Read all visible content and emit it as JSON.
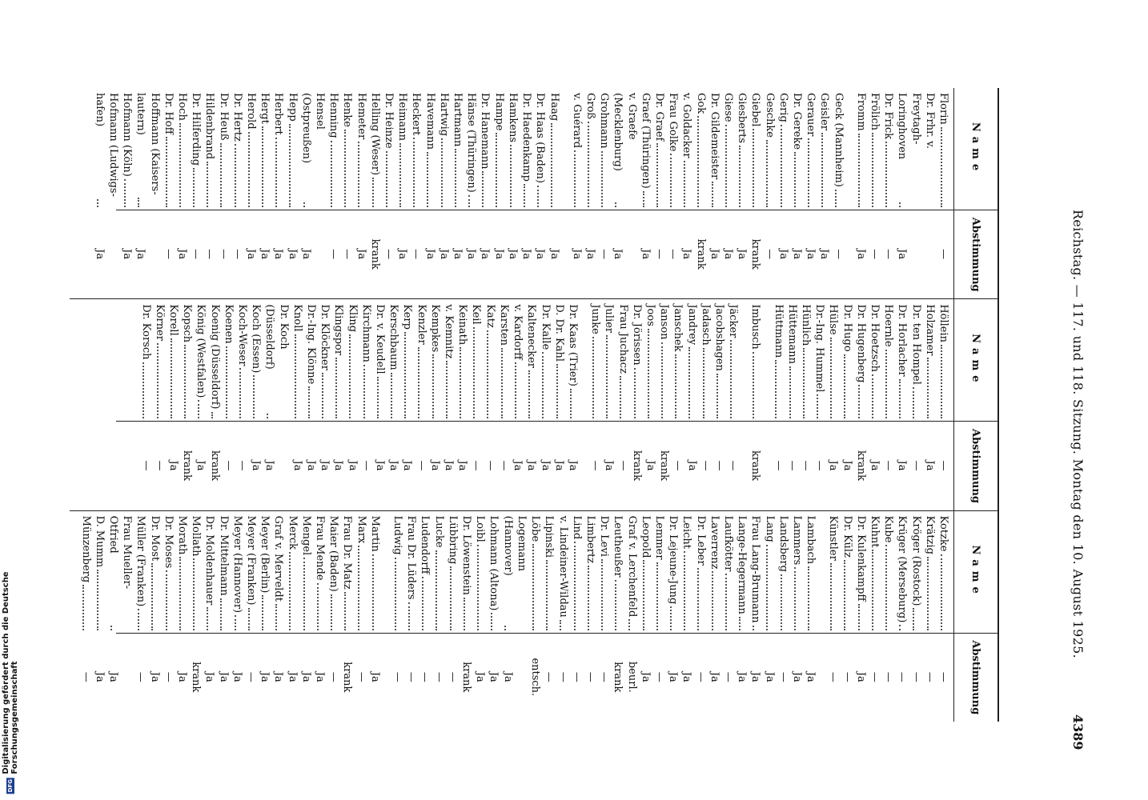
{
  "header": {
    "title": "Reichstag. — 117. und 118. Sitzung. Montag den 10. August 1925.",
    "page": "4389"
  },
  "table": {
    "columns": [
      {
        "name_header": "Name",
        "vote_header": "Abstimmung",
        "groups": [
          [
            [
              "Florin",
              "—"
            ],
            [
              "Dr. Frhr. v. Freytagh-\nLoringhoven",
              "Ja"
            ],
            [
              "Dr. Frick",
              "—"
            ],
            [
              "Frölich",
              "—"
            ],
            [
              "Fromm",
              "Ja"
            ]
          ],
          [
            [
              "Geck (Mannheim)",
              "—"
            ],
            [
              "Geisler",
              "Ja"
            ],
            [
              "Gerauer",
              "Ja"
            ],
            [
              "Dr. Gereke",
              "Ja"
            ],
            [
              "Gerig",
              "Ja"
            ],
            [
              "Geschke",
              "—"
            ],
            [
              "Giebel",
              "krank"
            ],
            [
              "Giesberts",
              "Ja"
            ],
            [
              "Giese",
              "Ja"
            ],
            [
              "Dr. Gildemeister",
              "Ja"
            ],
            [
              "Gok",
              "krank"
            ],
            [
              "v. Goldacker",
              "Ja"
            ],
            [
              "Frau Golke",
              "—"
            ],
            [
              "Dr. Graef",
              "—"
            ],
            [
              "Graef (Thüringen)",
              "Ja"
            ],
            [
              "v. Graefe (Mecklenburg)",
              "Ja"
            ],
            [
              "Grohmann",
              "—"
            ],
            [
              "Groß",
              "Ja"
            ],
            [
              "v. Guérard",
              "Ja"
            ]
          ],
          [
            [
              "Haag",
              "Ja"
            ],
            [
              "Dr. Haas (Baden)",
              "Ja"
            ],
            [
              "Dr. Haedenkamp",
              "Ja"
            ],
            [
              "Hamkens",
              "Ja"
            ],
            [
              "Hampe",
              "Ja"
            ],
            [
              "Dr. Hanemann",
              "Ja"
            ],
            [
              "Hänse (Thüringen)",
              "Ja"
            ],
            [
              "Hartmann",
              "Ja"
            ],
            [
              "Hartwig",
              "Ja"
            ],
            [
              "Havemann",
              "Ja"
            ],
            [
              "Heckert",
              "—"
            ],
            [
              "Heimann",
              "Ja"
            ],
            [
              "Dr. Heinze",
              "—"
            ],
            [
              "Helling (Weser)",
              "krank"
            ],
            [
              "Hemeter",
              "Ja"
            ],
            [
              "Henke",
              "—"
            ],
            [
              "Henning",
              "—"
            ],
            [
              "Hensel (Ostpreußen)",
              "Ja"
            ],
            [
              "Hepp",
              "Ja"
            ],
            [
              "Herbert",
              "Ja"
            ],
            [
              "Hergt",
              "Ja"
            ],
            [
              "Herold",
              "Ja"
            ],
            [
              "Dr. Hertz",
              "—"
            ],
            [
              "Dr. Heuß",
              "—"
            ],
            [
              "Hildenbrand",
              "—"
            ],
            [
              "Dr. Hilferding",
              "—"
            ],
            [
              "Hoch",
              "Ja"
            ],
            [
              "Dr. Hoff",
              "—"
            ],
            [
              "Hoffmann (Kaisers-\nlautern)",
              "Ja"
            ],
            [
              "Hofmann (Köln)",
              "Ja"
            ],
            [
              "Hofmann (Ludwigs-\nhafen)",
              "Ja"
            ]
          ]
        ]
      },
      {
        "name_header": "Name",
        "vote_header": "Abstimmung",
        "groups": [
          [
            [
              "Höllein",
              "—"
            ],
            [
              "Holzamer",
              "Ja"
            ],
            [
              "Dr. ten Hompel",
              "—"
            ],
            [
              "Dr. Horlacher",
              "Ja"
            ],
            [
              "Hoernle",
              "—"
            ],
            [
              "Dr. Hoetzsch",
              "Ja"
            ],
            [
              "Dr. Hugenberg",
              "krank"
            ],
            [
              "Dr. Hugo",
              "Ja"
            ],
            [
              "Hülse",
              "Ja"
            ],
            [
              "Dr.-Ing. Hummel",
              "—"
            ],
            [
              "Hünlich",
              "—"
            ],
            [
              "Hüttemann",
              "—"
            ],
            [
              "Hüttmann",
              "—"
            ]
          ],
          [
            [
              "Imbusch",
              "krank"
            ]
          ],
          [
            [
              "Jäcker",
              "—"
            ],
            [
              "Jacobshagen",
              "—"
            ],
            [
              "Jadasch",
              "—"
            ],
            [
              "Jandrey",
              "Ja"
            ],
            [
              "Janschek",
              "—"
            ],
            [
              "Janson",
              "krank"
            ],
            [
              "Joos",
              "Ja"
            ],
            [
              "Dr. Jörissen",
              "krank"
            ],
            [
              "Frau Juchacz",
              "—"
            ],
            [
              "Julier",
              "Ja"
            ],
            [
              "Junke",
              "—"
            ]
          ],
          [
            [
              "Dr. Kaas (Trier)",
              "Ja"
            ],
            [
              "D. Dr. Kahl",
              "Ja"
            ],
            [
              "Dr. Kalle",
              "Ja"
            ],
            [
              "Kaltenecker",
              "Ja"
            ],
            [
              "v. Kardorff",
              "Ja"
            ],
            [
              "Karsten",
              "—"
            ],
            [
              "Katz",
              "—"
            ],
            [
              "Keil",
              "—"
            ],
            [
              "Keinath",
              "Ja"
            ],
            [
              "v. Kemnitz",
              "Ja"
            ],
            [
              "Kempkes",
              "Ja"
            ],
            [
              "Kenzler",
              "—"
            ],
            [
              "Kerp",
              "Ja"
            ],
            [
              "Kerschbaum",
              "Ja"
            ],
            [
              "Dr. v. Keudell",
              "Ja"
            ],
            [
              "Kirchmann",
              "—"
            ],
            [
              "Kling",
              "Ja"
            ],
            [
              "Klingspor",
              "Ja"
            ],
            [
              "Dr. Klöckner",
              "Ja"
            ],
            [
              "Dr.-Ing. Klönne",
              "Ja"
            ],
            [
              "Knoll",
              "Ja"
            ],
            [
              "Dr. Koch (Düsseldorf)",
              "Ja"
            ],
            [
              "Koch (Essen)",
              "Ja"
            ],
            [
              "Koch-Weser",
              "—"
            ],
            [
              "Koenen",
              "—"
            ],
            [
              "Koenig (Düsseldorf)",
              "krank"
            ],
            [
              "König (Westfalen)",
              "Ja"
            ],
            [
              "Kopsch",
              "krank"
            ],
            [
              "Korell",
              "Ja"
            ],
            [
              "Körner",
              "—"
            ],
            [
              "Dr. Korsch",
              "—"
            ]
          ]
        ]
      },
      {
        "name_header": "Name",
        "vote_header": "Abstimmung",
        "groups": [
          [
            [
              "Kotzke",
              "—"
            ],
            [
              "Krätzig",
              "—"
            ],
            [
              "Kröger (Rostock)",
              "—"
            ],
            [
              "Krüger (Merseburg)",
              "—"
            ],
            [
              "Kube",
              "—"
            ],
            [
              "Kuhnt",
              "—"
            ],
            [
              "Dr. Kulenkampff",
              "Ja"
            ],
            [
              "Dr. Külz",
              "—"
            ],
            [
              "Künstler",
              "—"
            ]
          ],
          [
            [
              "Lambach",
              "Ja"
            ],
            [
              "Lammers",
              "Ja"
            ],
            [
              "Landsberg",
              "—"
            ],
            [
              "Lang",
              "Ja"
            ],
            [
              "Frau Lang-Brumann",
              "Ja"
            ],
            [
              "Lange-Hegermann",
              "Ja"
            ],
            [
              "Laufkötter",
              "—"
            ],
            [
              "Laverrenz",
              "Ja"
            ],
            [
              "Dr. Leber",
              "—"
            ],
            [
              "Leicht",
              "Ja"
            ],
            [
              "Dr. Lejeune-Jung",
              "Ja"
            ],
            [
              "Lemmer",
              "—"
            ],
            [
              "Leopold",
              "Ja"
            ],
            [
              "Graf v. Lerchenfeld",
              "beurl."
            ],
            [
              "Leutheußer",
              "krank"
            ],
            [
              "Dr. Levi",
              "—"
            ],
            [
              "Limbertz",
              "—"
            ],
            [
              "Lind",
              "—"
            ],
            [
              "v. Lindeiner-Wildau",
              "—"
            ],
            [
              "Lipinski",
              "—"
            ],
            [
              "Löbe",
              "entsch."
            ],
            [
              "Logemann (Hannover)",
              "Ja"
            ],
            [
              "Lohmann (Altona)",
              "Ja"
            ],
            [
              "Loibl",
              "Ja"
            ],
            [
              "Dr. Löwenstein",
              "krank"
            ],
            [
              "Lübbring",
              "—"
            ],
            [
              "Lucke",
              "—"
            ],
            [
              "Ludendorff",
              "—"
            ],
            [
              "Frau Dr. Lüders",
              "—"
            ],
            [
              "Ludwig",
              "—"
            ]
          ],
          [
            [
              "Martin",
              "Ja"
            ],
            [
              "Marx",
              "—"
            ],
            [
              "Frau Dr. Matz",
              "krank"
            ],
            [
              "Maier (Baden)",
              "—"
            ],
            [
              "Frau Mende",
              "Ja"
            ],
            [
              "Mengel",
              "Ja"
            ],
            [
              "Merck",
              "Ja"
            ],
            [
              "Graf v. Merveldt",
              "Ja"
            ],
            [
              "Meyer (Berlin)",
              "Ja"
            ],
            [
              "Meyer (Franken)",
              "—"
            ],
            [
              "Meyer (Hannover)",
              "Ja"
            ],
            [
              "Dr. Mittelmann",
              "Ja"
            ],
            [
              "Dr. Moldenhauer",
              "Ja"
            ],
            [
              "Mollath",
              "krank"
            ],
            [
              "Morath",
              "Ja"
            ],
            [
              "Dr. Moses",
              "—"
            ],
            [
              "Dr. Most",
              "Ja"
            ],
            [
              "Müller (Franken)",
              "—"
            ],
            [
              "Frau Mueller-Otfried",
              "Ja"
            ],
            [
              "D. Mumm",
              "Ja"
            ],
            [
              "Münzenberg",
              "—"
            ]
          ]
        ]
      }
    ]
  },
  "footer": {
    "text": "Digitalisierung gefördert durch die Deutsche Forschungsgemeinschaft",
    "logo": "DFG"
  }
}
